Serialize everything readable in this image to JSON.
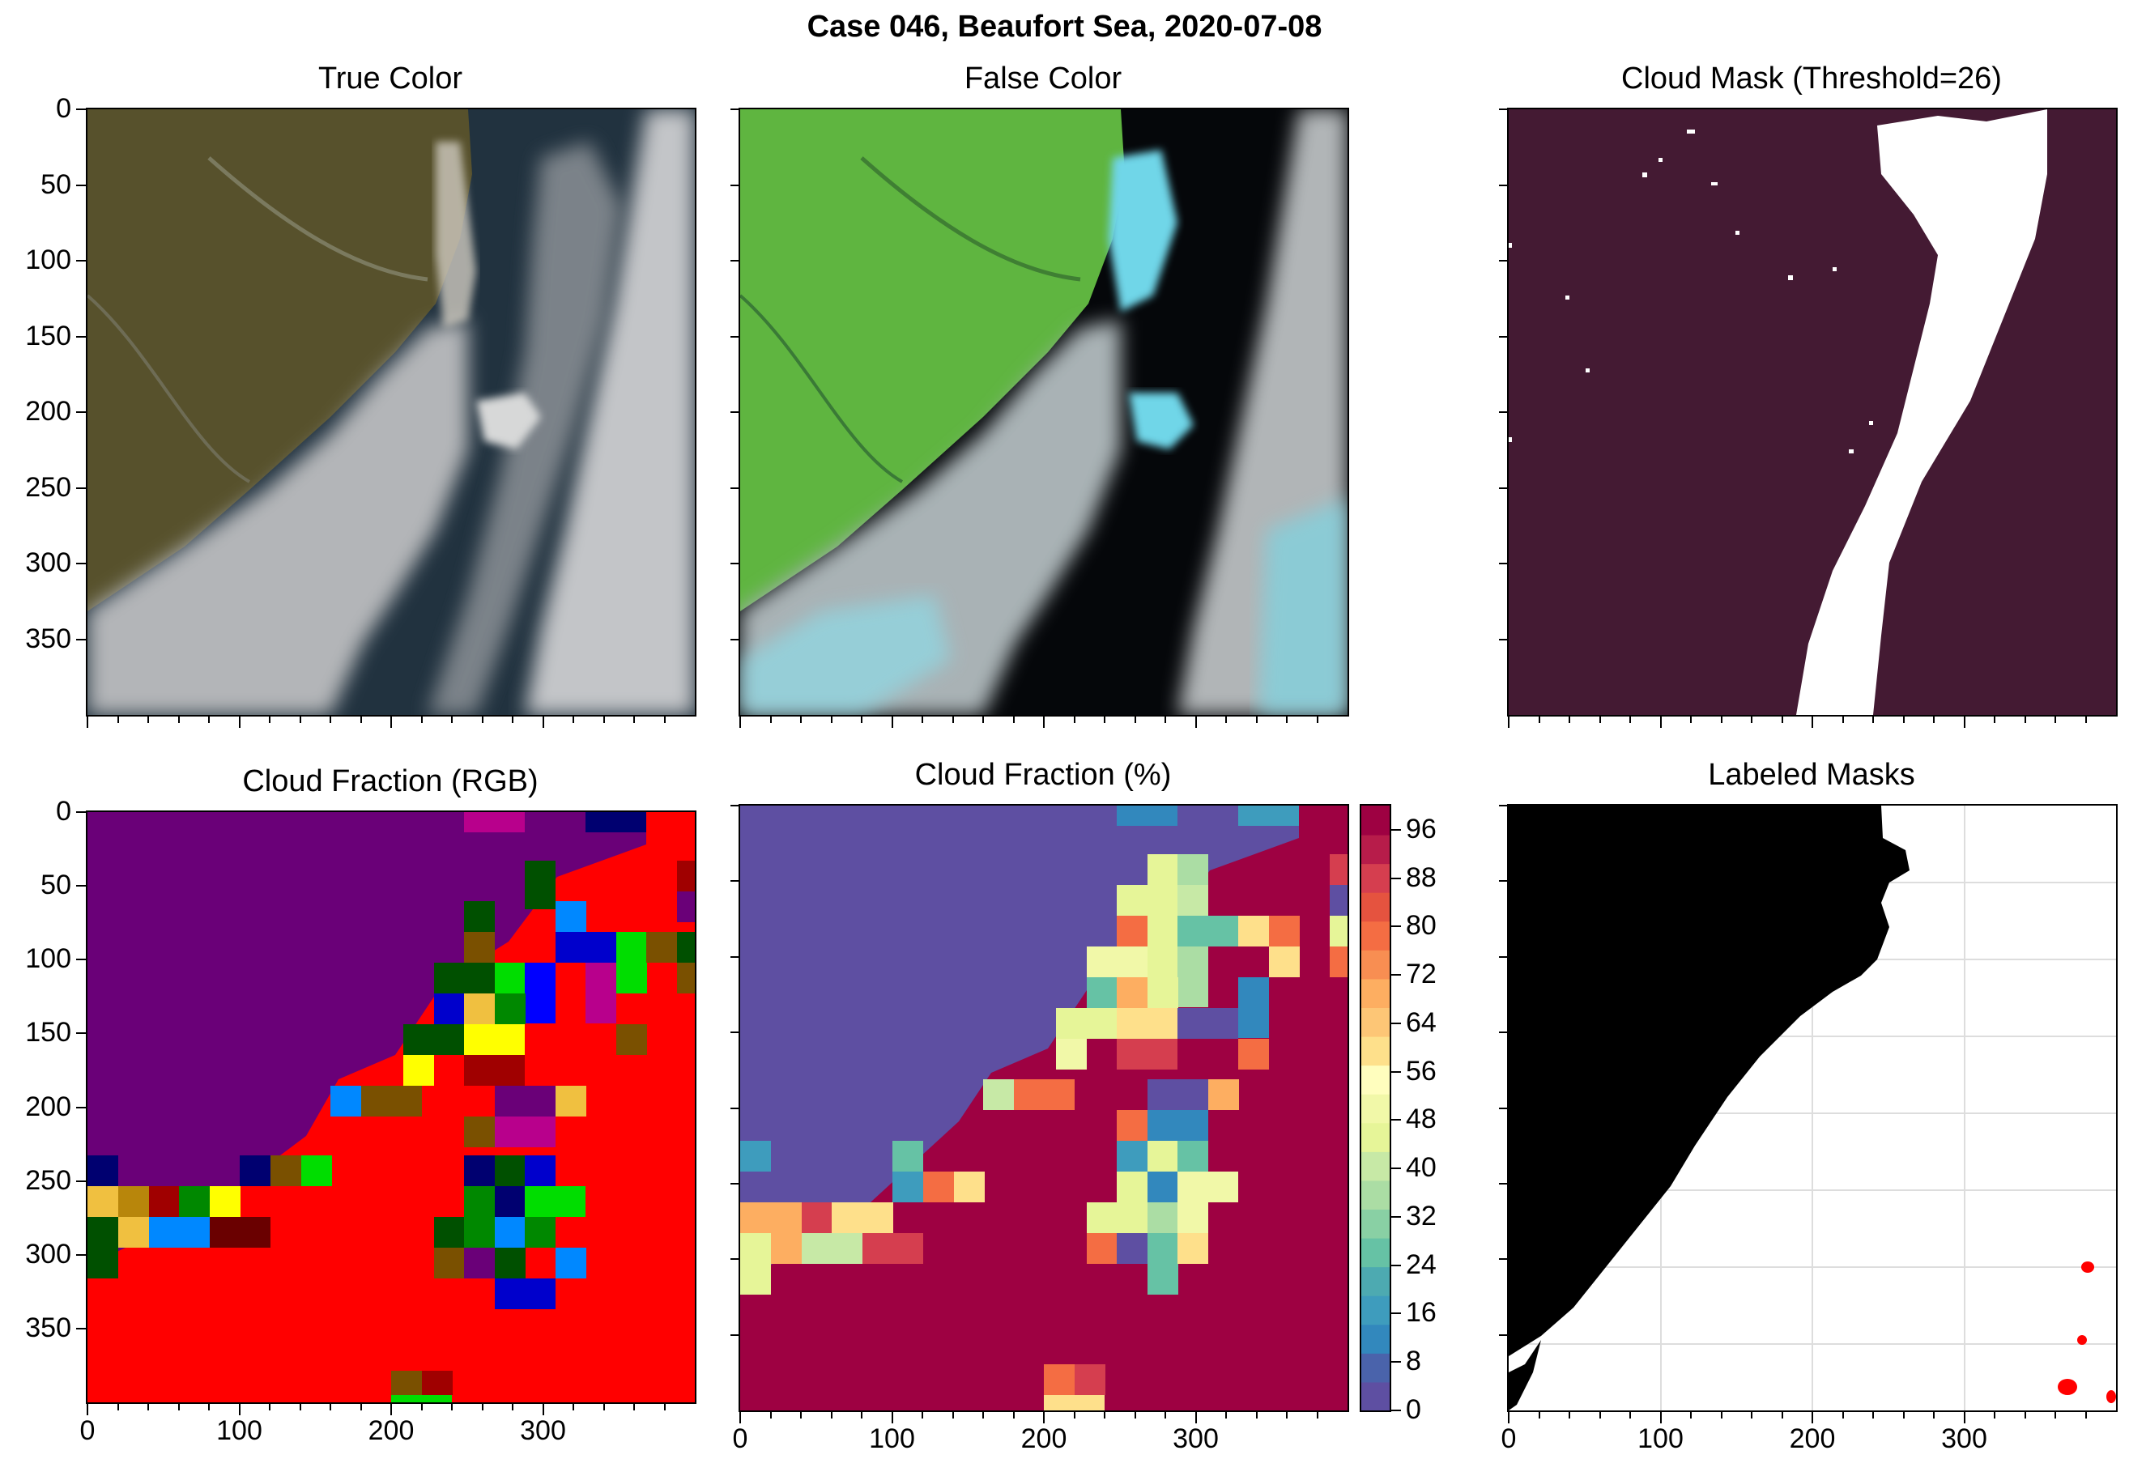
{
  "suptitle": "Case 046, Beaufort Sea, 2020-07-08",
  "chart_data": [
    {
      "type": "heatmap",
      "title": "True Color",
      "image": "true-color satellite image: brownish-green tundra upper-left, dark navy sea, grey-white cloud streets and sea ice",
      "ylim": [
        400,
        0
      ],
      "xlim": [
        0,
        400
      ],
      "yticks": [
        0,
        50,
        100,
        150,
        200,
        250,
        300,
        350
      ],
      "colors": {
        "land": "#57512c",
        "sea": "#21323f",
        "cloud": "#b7b9bc"
      }
    },
    {
      "type": "heatmap",
      "title": "False Color",
      "image": "false-color composite: bright green land, black open water, cyan sea ice, white/grey clouds",
      "ylim": [
        400,
        0
      ],
      "xlim": [
        0,
        400
      ],
      "colors": {
        "land": "#5fb540",
        "sea": "#05070a",
        "ice": "#6fd6e8",
        "cloud": "#a9b0b3"
      }
    },
    {
      "type": "heatmap",
      "title": "Cloud Mask (Threshold=26)",
      "image": "binary mask: dark maroon background, white band (masked region) running diagonally from top-right to bottom-center",
      "ylim": [
        400,
        0
      ],
      "xlim": [
        0,
        400
      ],
      "colors": {
        "background": "#441a33",
        "mask": "#ffffff"
      }
    },
    {
      "type": "heatmap",
      "title": "Cloud Fraction (RGB)",
      "xticks": [
        0,
        100,
        200,
        300
      ],
      "yticks": [
        0,
        50,
        100,
        150,
        200,
        250,
        300,
        350
      ],
      "xlim": [
        0,
        400
      ],
      "ylim": [
        400,
        0
      ],
      "grid_cell": 20,
      "colors": {
        "background": "#6a0078",
        "fill": "#ff0000"
      }
    },
    {
      "type": "heatmap",
      "title": "Cloud Fraction (%)",
      "xticks": [
        0,
        100,
        200,
        300
      ],
      "xlim": [
        0,
        400
      ],
      "ylim": [
        400,
        0
      ],
      "grid_cell": 20,
      "colorbar": {
        "cmap": "Spectral_r",
        "min": 0,
        "max": 100,
        "ticks": [
          0,
          8,
          16,
          24,
          32,
          40,
          48,
          56,
          64,
          72,
          80,
          88,
          96
        ]
      }
    },
    {
      "type": "heatmap",
      "title": "Labeled Masks",
      "xticks": [
        0,
        100,
        200,
        300
      ],
      "yticks": [],
      "xlim": [
        0,
        400
      ],
      "ylim": [
        400,
        0
      ],
      "grid": true,
      "colors": {
        "land": "#000000",
        "sea": "#ffffff",
        "label": "#ff0000"
      }
    }
  ]
}
